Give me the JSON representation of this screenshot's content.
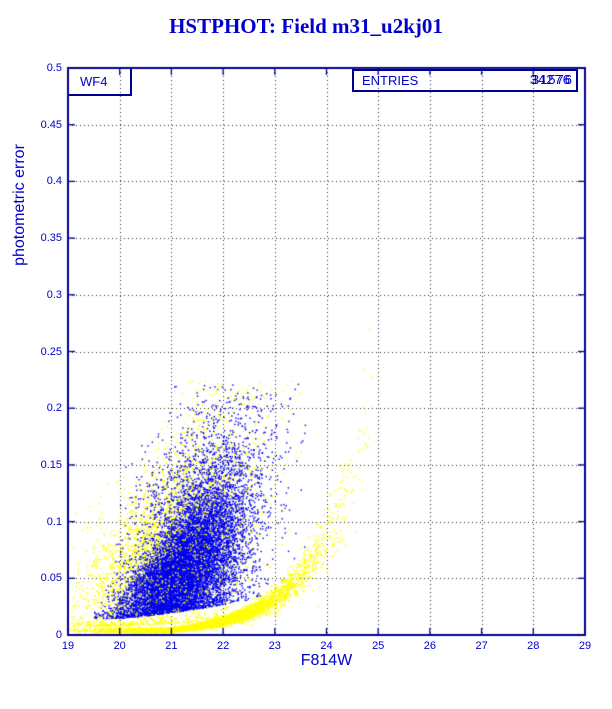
{
  "title": "HSTPHOT: Field m31_u2kj01",
  "colors": {
    "frame": "#000090",
    "axis_text": "#0000c8",
    "title_text": "#0000cd",
    "grid": "#2a2a2a",
    "series_blue": "#0000f0",
    "series_yellow": "#ffff00",
    "background": "#ffffff"
  },
  "chart_data": {
    "type": "scatter",
    "title": "HSTPHOT: Field m31_u2kj01",
    "xlabel": "F814W",
    "ylabel": "photometric error",
    "xlim": [
      19,
      29
    ],
    "ylim": [
      0,
      0.5
    ],
    "grid": "dotted",
    "legend": "none",
    "x_ticks": {
      "values": [
        19,
        20,
        21,
        22,
        23,
        24,
        25,
        26,
        27,
        28,
        29
      ],
      "labels": [
        "19",
        "20",
        "21",
        "22",
        "23",
        "24",
        "25",
        "26",
        "27",
        "28",
        "29"
      ]
    },
    "y_ticks": {
      "values": [
        0,
        0.05,
        0.1,
        0.15,
        0.2,
        0.25,
        0.3,
        0.35,
        0.4,
        0.45,
        0.5
      ],
      "labels": [
        "0",
        "0.05",
        "0.1",
        "0.15",
        "0.2",
        "0.25",
        "0.3",
        "0.35",
        "0.4",
        "0.45",
        "0.5"
      ]
    },
    "annotations": {
      "dataset_label": "WF4"
    },
    "stats_box": {
      "label": "ENTRIES",
      "values": [
        "34276",
        "31576"
      ]
    },
    "description": "Photometric error vs F814W magnitude for HST chip WF4; blue detections form a dense tilted cloud (mag 20-23.5, err 0.02-0.22); yellow detections form a similar cloud plus a tight exponential error-vs-magnitude sequence along the bottom rising toward mag 25.",
    "series": [
      {
        "name": "yellow-detections-back",
        "color": "#ffff00",
        "clusters": [
          {
            "shape": "gauss",
            "layer": 0,
            "n": 2600,
            "mag_mean": 20.9,
            "mag_sd": 0.85,
            "err_mean": 0.075,
            "err_sd": 0.042,
            "corr": 0.028,
            "spread_growth": 0.3,
            "mag_min": 19.05,
            "mag_max": 23.9,
            "err_max": 0.225,
            "floor_base": 0.008,
            "floor_k": 0.28,
            "floor_ref": 20.0
          }
        ]
      },
      {
        "name": "blue-detections",
        "color": "#0000f0",
        "clusters": [
          {
            "shape": "gauss",
            "layer": 1,
            "n": 9500,
            "mag_mean": 21.25,
            "mag_sd": 0.58,
            "err_mean": 0.06,
            "err_sd": 0.026,
            "corr": 0.03,
            "spread_growth": 0.45,
            "mag_min": 19.5,
            "mag_max": 23.5,
            "err_max": 0.17,
            "floor_base": 0.015,
            "floor_k": 0.3,
            "floor_ref": 20.0
          },
          {
            "shape": "gauss",
            "layer": 1,
            "n": 1600,
            "mag_mean": 21.6,
            "mag_sd": 0.75,
            "err_mean": 0.125,
            "err_sd": 0.04,
            "corr": 0.02,
            "spread_growth": 0.2,
            "mag_min": 19.9,
            "mag_max": 23.6,
            "err_max": 0.222,
            "floor_base": 0.03,
            "floor_k": 0.2,
            "floor_ref": 20.0
          }
        ]
      },
      {
        "name": "yellow-detections-front",
        "color": "#ffff00",
        "clusters": [
          {
            "shape": "gauss",
            "layer": 2,
            "n": 900,
            "mag_mean": 21.0,
            "mag_sd": 0.9,
            "err_mean": 0.08,
            "err_sd": 0.045,
            "corr": 0.028,
            "spread_growth": 0.3,
            "mag_min": 19.05,
            "mag_max": 23.9,
            "err_max": 0.225,
            "floor_base": 0.008,
            "floor_k": 0.28,
            "floor_ref": 20.0
          },
          {
            "shape": "curve",
            "layer": 2,
            "n": 3800,
            "mag_mean": 21.9,
            "mag_sd": 1.15,
            "mag_min": 19.0,
            "mag_max": 25.1,
            "err_scale": 0.005,
            "err_k": 0.95,
            "err_ref": 21.0,
            "err_floor": 0.0045,
            "scatter": 0.16
          }
        ]
      }
    ]
  }
}
